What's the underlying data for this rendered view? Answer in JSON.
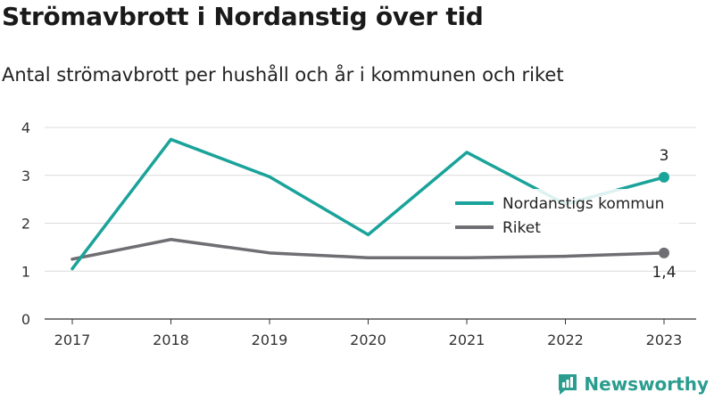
{
  "header": {
    "title": "Strömavbrott i Nordanstig över tid",
    "subtitle": "Antal strömavbrott per hushåll och år i kommunen och riket"
  },
  "brand": {
    "name": "Newsworthy",
    "color": "#2a9d8f"
  },
  "chart_data": {
    "type": "line",
    "title": "Strömavbrott i Nordanstig över tid",
    "subtitle": "Antal strömavbrott per hushåll och år i kommunen och riket",
    "xlabel": "",
    "ylabel": "",
    "categories": [
      "2017",
      "2018",
      "2019",
      "2020",
      "2021",
      "2022",
      "2023"
    ],
    "ylim": [
      0,
      4
    ],
    "yticks": [
      "0",
      "1",
      "2",
      "3",
      "4"
    ],
    "grid": true,
    "legend_position": "right",
    "series": [
      {
        "name": "Nordanstigs kommun",
        "color": "#1aa39a",
        "values": [
          1.05,
          3.75,
          2.97,
          1.76,
          3.48,
          2.4,
          2.96
        ],
        "end_label": "3"
      },
      {
        "name": "Riket",
        "color": "#6e6e73",
        "values": [
          1.25,
          1.66,
          1.38,
          1.28,
          1.28,
          1.31,
          1.38
        ],
        "end_label": "1,4"
      }
    ]
  }
}
